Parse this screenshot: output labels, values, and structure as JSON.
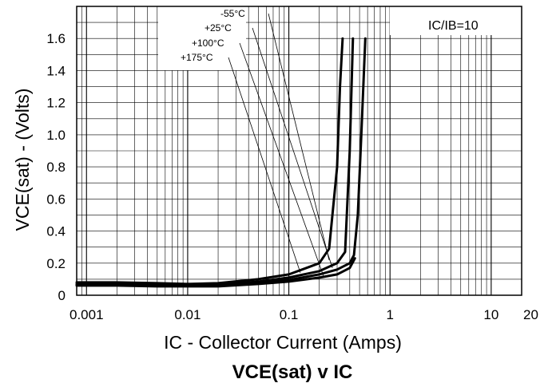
{
  "chart_data": {
    "type": "line",
    "title": "VCE(sat) v IC",
    "xlabel": "IC - Collector Current (Amps)",
    "ylabel": "VCE(sat) - (Volts)",
    "xscale": "log",
    "xlim": [
      0.0008,
      20
    ],
    "ylim": [
      0,
      1.8
    ],
    "x_ticks": [
      0.001,
      0.01,
      0.1,
      1,
      10,
      20
    ],
    "x_tick_labels": [
      "0.001",
      "0.01",
      "0.1",
      "1",
      "10",
      "20"
    ],
    "y_ticks": [
      0,
      0.2,
      0.4,
      0.6,
      0.8,
      1.0,
      1.2,
      1.4,
      1.6
    ],
    "y_tick_labels": [
      "0",
      "0.2",
      "0.4",
      "0.6",
      "0.8",
      "1.0",
      "1.2",
      "1.4",
      "1.6"
    ],
    "grid": true,
    "condition": "IC/IB=10",
    "series": [
      {
        "name": "-55°C",
        "x": [
          0.0008,
          0.002,
          0.005,
          0.01,
          0.02,
          0.05,
          0.1,
          0.2,
          0.25,
          0.3,
          0.32,
          0.34
        ],
        "y": [
          0.08,
          0.08,
          0.075,
          0.07,
          0.075,
          0.1,
          0.13,
          0.2,
          0.29,
          0.8,
          1.3,
          1.6
        ]
      },
      {
        "name": "+25°C",
        "x": [
          0.0008,
          0.002,
          0.005,
          0.01,
          0.02,
          0.05,
          0.1,
          0.2,
          0.3,
          0.36,
          0.4,
          0.43
        ],
        "y": [
          0.07,
          0.07,
          0.065,
          0.06,
          0.065,
          0.085,
          0.11,
          0.15,
          0.2,
          0.27,
          0.9,
          1.6
        ]
      },
      {
        "name": "+100°C",
        "x": [
          0.0008,
          0.002,
          0.005,
          0.01,
          0.02,
          0.05,
          0.1,
          0.2,
          0.3,
          0.4,
          0.44,
          0.48,
          0.52,
          0.57
        ],
        "y": [
          0.065,
          0.065,
          0.06,
          0.06,
          0.06,
          0.075,
          0.095,
          0.13,
          0.16,
          0.2,
          0.25,
          0.5,
          1.0,
          1.6
        ]
      },
      {
        "name": "+175°C",
        "x": [
          0.0008,
          0.002,
          0.005,
          0.01,
          0.02,
          0.05,
          0.1,
          0.2,
          0.3,
          0.4,
          0.45
        ],
        "y": [
          0.06,
          0.06,
          0.055,
          0.055,
          0.055,
          0.07,
          0.085,
          0.11,
          0.13,
          0.17,
          0.23
        ]
      }
    ]
  }
}
